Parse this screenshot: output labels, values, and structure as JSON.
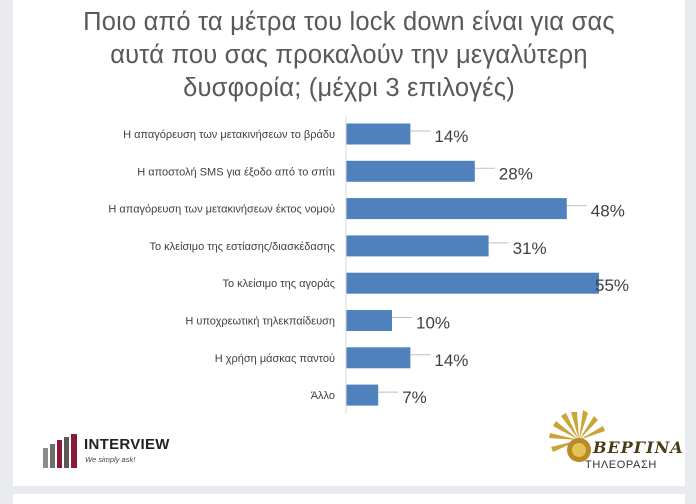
{
  "title": "Ποιο από τα μέτρα του lock down είναι για σας\nαυτά που σας προκαλούν την μεγαλύτερη\nδυσφορία; (μέχρι 3 επιλογές)",
  "chart_data": {
    "type": "bar",
    "orientation": "horizontal",
    "title": "Ποιο από τα μέτρα του lock down είναι για σας αυτά που σας προκαλούν την μεγαλύτερη δυσφορία; (μέχρι 3 επιλογές)",
    "categories": [
      "Η απαγόρευση των μετακινήσεων το βράδυ",
      "Η αποστολή SMS για έξοδο από το σπίτι",
      "Η απαγόρευση των μετακινήσεων έκτος νομού",
      "Το κλείσιμο της εστίασης/διασκέδασης",
      "Το κλείσιμο της αγοράς",
      "Η υποχρεωτική τηλεκπαίδευση",
      "Η χρήση μάσκας παντού",
      "Άλλο"
    ],
    "values": [
      14,
      28,
      48,
      31,
      55,
      10,
      14,
      7
    ],
    "value_labels": [
      "14%",
      "28%",
      "48%",
      "31%",
      "55%",
      "10%",
      "14%",
      "7%"
    ],
    "unit": "%",
    "bar_color": "#4f81bd",
    "grid": false,
    "xlim": [
      0,
      55
    ]
  },
  "logos": {
    "interview": {
      "name": "INTERVIEW",
      "tagline": "We simply ask!"
    },
    "vergina": {
      "name": "ΒΕΡΓΙΝΑ",
      "sub": "ΤΗΛΕΟΡΑΣΗ"
    }
  },
  "colors": {
    "bar": "#4f81bd",
    "title": "#595959",
    "interview_accent": "#8b1a3a",
    "vergina_gold": "#c9a437"
  }
}
